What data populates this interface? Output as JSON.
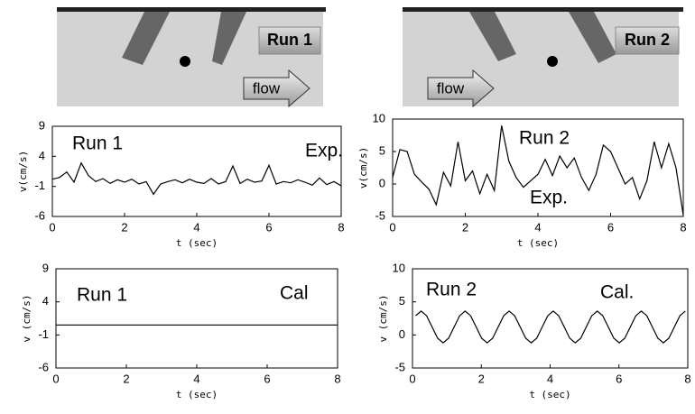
{
  "diagram": {
    "panels": [
      {
        "label": "Run 1",
        "flow": "flow"
      },
      {
        "label": "Run 2",
        "flow": "flow"
      }
    ]
  },
  "chart_data": [
    {
      "type": "line",
      "title": "Run 1",
      "annotation": "Exp.",
      "xlabel": "t (sec)",
      "ylabel": "v(cm/s)",
      "xlim": [
        0,
        8
      ],
      "xticks": [
        0,
        2,
        4,
        6,
        8
      ],
      "ylim": [
        -6,
        9
      ],
      "yticks": [
        9,
        4,
        -1,
        -6
      ],
      "color": "#000000",
      "x": [
        0,
        0.2,
        0.4,
        0.6,
        0.8,
        1,
        1.2,
        1.4,
        1.6,
        1.8,
        2,
        2.2,
        2.4,
        2.6,
        2.8,
        3,
        3.2,
        3.4,
        3.6,
        3.8,
        4,
        4.2,
        4.4,
        4.6,
        4.8,
        5,
        5.2,
        5.4,
        5.6,
        5.8,
        6,
        6.2,
        6.4,
        6.6,
        6.8,
        7,
        7.2,
        7.4,
        7.6,
        7.8,
        8
      ],
      "values": [
        0.2,
        0.5,
        1.4,
        -0.3,
        2.9,
        0.8,
        -0.2,
        0.3,
        -0.5,
        0.1,
        -0.3,
        0.2,
        -0.6,
        -0.2,
        -2.3,
        -0.6,
        -0.2,
        0.1,
        -0.4,
        0.2,
        -0.3,
        -0.5,
        0.3,
        -0.6,
        -0.2,
        2.4,
        -0.5,
        0.2,
        -0.3,
        -0.1,
        2.5,
        -0.6,
        -0.2,
        -0.4,
        0.1,
        -0.3,
        -0.8,
        0.4,
        -0.7,
        -0.2,
        -0.9
      ]
    },
    {
      "type": "line",
      "title": "Run 2",
      "annotation": "Exp.",
      "xlabel": "t (sec)",
      "ylabel": "v(cm/s)",
      "xlim": [
        0,
        8
      ],
      "xticks": [
        0,
        2,
        4,
        6,
        8
      ],
      "ylim": [
        -5,
        10
      ],
      "yticks": [
        10,
        5,
        0,
        -5
      ],
      "color": "#000000",
      "x": [
        0,
        0.2,
        0.4,
        0.6,
        0.8,
        1,
        1.2,
        1.4,
        1.6,
        1.8,
        2,
        2.2,
        2.4,
        2.6,
        2.8,
        3,
        3.2,
        3.4,
        3.6,
        3.8,
        4,
        4.2,
        4.4,
        4.6,
        4.8,
        5,
        5.2,
        5.4,
        5.6,
        5.8,
        6,
        6.2,
        6.4,
        6.6,
        6.8,
        7,
        7.2,
        7.4,
        7.6,
        7.8,
        8
      ],
      "values": [
        1,
        5.3,
        5,
        1.5,
        0.3,
        -0.8,
        -3.2,
        1.8,
        -0.3,
        6.5,
        0.5,
        2,
        -1.5,
        1.5,
        -1,
        9,
        3.5,
        1,
        -0.5,
        0.5,
        1.5,
        3.8,
        1.3,
        4.3,
        2.5,
        4,
        1,
        -1,
        1.5,
        6,
        5,
        2.5,
        0,
        1,
        -2.3,
        0.5,
        6.5,
        2.5,
        6.2,
        2.5,
        -4.8
      ]
    },
    {
      "type": "line",
      "title": "Run 1",
      "annotation": "Cal",
      "xlabel": "t (sec)",
      "ylabel": "v (cm/s)",
      "xlim": [
        0,
        8
      ],
      "xticks": [
        0,
        2,
        4,
        6,
        8
      ],
      "ylim": [
        -6,
        9
      ],
      "yticks": [
        9,
        4,
        -1,
        -6
      ],
      "color": "#000000",
      "x": [
        0,
        8
      ],
      "values": [
        0.5,
        0.5
      ]
    },
    {
      "type": "line",
      "title": "Run 2",
      "annotation": "Cal.",
      "xlabel": "t (sec)",
      "ylabel": "v (cm/s)",
      "xlim": [
        0,
        8
      ],
      "xticks": [
        0,
        2,
        4,
        6,
        8
      ],
      "ylim": [
        -5,
        10
      ],
      "yticks": [
        10,
        5,
        0,
        -5
      ],
      "color": "#000000",
      "x": [
        0.09,
        0.25,
        0.41,
        0.57,
        0.73,
        0.89,
        1.05,
        1.21,
        1.37,
        1.53,
        1.69,
        1.85,
        2.01,
        2.17,
        2.33,
        2.49,
        2.65,
        2.81,
        2.97,
        3.13,
        3.29,
        3.45,
        3.61,
        3.77,
        3.93,
        4.09,
        4.25,
        4.41,
        4.57,
        4.73,
        4.89,
        5.05,
        5.21,
        5.37,
        5.53,
        5.69,
        5.85,
        6.01,
        6.17,
        6.33,
        6.49,
        6.65,
        6.81,
        6.97,
        7.13,
        7.29,
        7.45,
        7.61,
        7.77,
        7.93
      ],
      "values": [
        2.9,
        3.6,
        2.9,
        1.2,
        -0.5,
        -1.2,
        -0.5,
        1.2,
        2.9,
        3.6,
        2.9,
        1.2,
        -0.5,
        -1.2,
        -0.5,
        1.2,
        2.9,
        3.6,
        2.9,
        1.2,
        -0.5,
        -1.2,
        -0.5,
        1.2,
        2.9,
        3.6,
        2.9,
        1.2,
        -0.5,
        -1.2,
        -0.5,
        1.2,
        2.9,
        3.6,
        2.9,
        1.2,
        -0.5,
        -1.2,
        -0.5,
        1.2,
        2.9,
        3.6,
        2.9,
        1.2,
        -0.5,
        -1.2,
        -0.5,
        1.2,
        2.9,
        3.6
      ]
    }
  ]
}
